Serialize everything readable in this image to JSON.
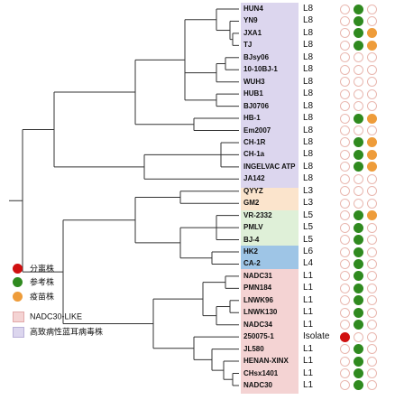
{
  "colors": {
    "purple_band": "#dcd6ee",
    "orange_band": "#fbe4cc",
    "green_band": "#dff0d8",
    "blue_band": "#9ec5e6",
    "pink_band": "#f4d3d3",
    "isolate_dot": "#d01010",
    "reference_dot": "#2f8a1f",
    "vaccine_dot": "#ee9c3a",
    "empty_ring": "#e9b8b0",
    "tree_line": "#333333"
  },
  "legend": {
    "isolate": "分离株",
    "reference": "参考株",
    "vaccine": "疫苗株",
    "nadc30_like": "NADC30-LIKE",
    "hp_prrsv": "高致病性蓝耳病毒株"
  },
  "strains": [
    {
      "name": "HUN4",
      "lineage": "L8",
      "isolate": false,
      "reference": true,
      "vaccine": false
    },
    {
      "name": "YN9",
      "lineage": "L8",
      "isolate": false,
      "reference": true,
      "vaccine": false
    },
    {
      "name": "JXA1",
      "lineage": "L8",
      "isolate": false,
      "reference": true,
      "vaccine": true
    },
    {
      "name": "TJ",
      "lineage": "L8",
      "isolate": false,
      "reference": true,
      "vaccine": true
    },
    {
      "name": "BJsy06",
      "lineage": "L8",
      "isolate": false,
      "reference": false,
      "vaccine": false
    },
    {
      "name": "10-10BJ-1",
      "lineage": "L8",
      "isolate": false,
      "reference": false,
      "vaccine": false
    },
    {
      "name": "WUH3",
      "lineage": "L8",
      "isolate": false,
      "reference": false,
      "vaccine": false
    },
    {
      "name": "HUB1",
      "lineage": "L8",
      "isolate": false,
      "reference": false,
      "vaccine": false
    },
    {
      "name": "BJ0706",
      "lineage": "L8",
      "isolate": false,
      "reference": false,
      "vaccine": false
    },
    {
      "name": "HB-1",
      "lineage": "L8",
      "isolate": false,
      "reference": true,
      "vaccine": true
    },
    {
      "name": "Em2007",
      "lineage": "L8",
      "isolate": false,
      "reference": false,
      "vaccine": false
    },
    {
      "name": "CH-1R",
      "lineage": "L8",
      "isolate": false,
      "reference": true,
      "vaccine": true
    },
    {
      "name": "CH-1a",
      "lineage": "L8",
      "isolate": false,
      "reference": true,
      "vaccine": true
    },
    {
      "name": "INGELVAC ATP",
      "lineage": "L8",
      "isolate": false,
      "reference": true,
      "vaccine": true
    },
    {
      "name": "JA142",
      "lineage": "L8",
      "isolate": false,
      "reference": false,
      "vaccine": false
    },
    {
      "name": "QYYZ",
      "lineage": "L3",
      "isolate": false,
      "reference": false,
      "vaccine": false
    },
    {
      "name": "GM2",
      "lineage": "L3",
      "isolate": false,
      "reference": false,
      "vaccine": false
    },
    {
      "name": "VR-2332",
      "lineage": "L5",
      "isolate": false,
      "reference": true,
      "vaccine": true
    },
    {
      "name": "PMLV",
      "lineage": "L5",
      "isolate": false,
      "reference": true,
      "vaccine": false
    },
    {
      "name": "BJ-4",
      "lineage": "L5",
      "isolate": false,
      "reference": true,
      "vaccine": false
    },
    {
      "name": "HK2",
      "lineage": "L6",
      "isolate": false,
      "reference": true,
      "vaccine": false
    },
    {
      "name": "CA-2",
      "lineage": "L4",
      "isolate": false,
      "reference": true,
      "vaccine": false
    },
    {
      "name": "NADC31",
      "lineage": "L1",
      "isolate": false,
      "reference": true,
      "vaccine": false
    },
    {
      "name": "PMN184",
      "lineage": "L1",
      "isolate": false,
      "reference": true,
      "vaccine": false
    },
    {
      "name": "LNWK96",
      "lineage": "L1",
      "isolate": false,
      "reference": true,
      "vaccine": false
    },
    {
      "name": "LNWK130",
      "lineage": "L1",
      "isolate": false,
      "reference": true,
      "vaccine": false
    },
    {
      "name": "NADC34",
      "lineage": "L1",
      "isolate": false,
      "reference": true,
      "vaccine": false
    },
    {
      "name": "250075-1",
      "lineage": "Isolate",
      "isolate": true,
      "reference": false,
      "vaccine": false
    },
    {
      "name": "JL580",
      "lineage": "L1",
      "isolate": false,
      "reference": true,
      "vaccine": false
    },
    {
      "name": "HENAN-XINX",
      "lineage": "L1",
      "isolate": false,
      "reference": true,
      "vaccine": false
    },
    {
      "name": "CHsx1401",
      "lineage": "L1",
      "isolate": false,
      "reference": true,
      "vaccine": false
    },
    {
      "name": "NADC30",
      "lineage": "L1",
      "isolate": false,
      "reference": true,
      "vaccine": false
    }
  ]
}
